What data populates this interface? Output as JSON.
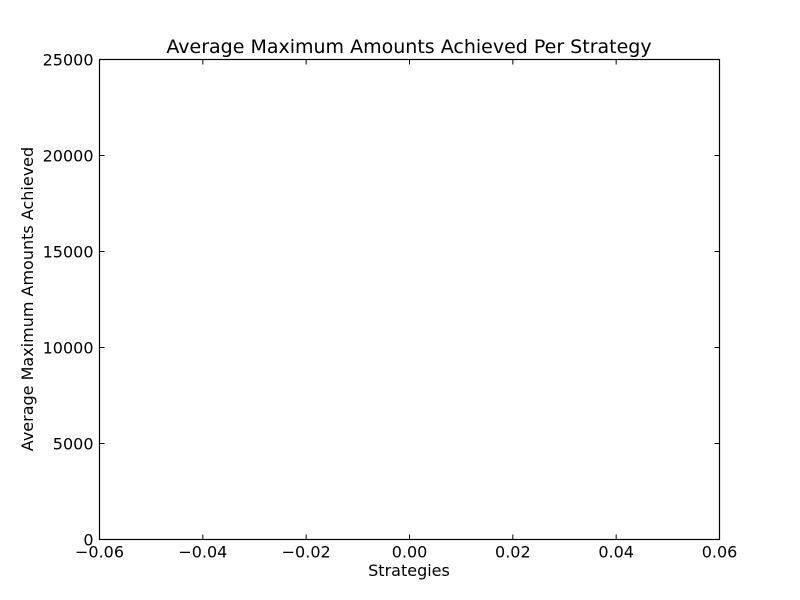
{
  "chart_data": {
    "type": "bar",
    "title": "Average Maximum Amounts Achieved Per Strategy",
    "xlabel": "Strategies",
    "ylabel": "Average Maximum Amounts Achieved",
    "xlim": [
      -0.06,
      0.06
    ],
    "ylim": [
      0,
      25000
    ],
    "x_ticks": [
      -0.06,
      -0.04,
      -0.02,
      0.0,
      0.02,
      0.04,
      0.06
    ],
    "x_tick_labels": [
      "−0.06",
      "−0.04",
      "−0.02",
      "0.00",
      "0.02",
      "0.04",
      "0.06"
    ],
    "y_ticks": [
      0,
      5000,
      10000,
      15000,
      20000,
      25000
    ],
    "y_tick_labels": [
      "0",
      "5000",
      "10000",
      "15000",
      "20000",
      "25000"
    ],
    "categories": [],
    "values": [],
    "grid": false,
    "legend": "none"
  }
}
